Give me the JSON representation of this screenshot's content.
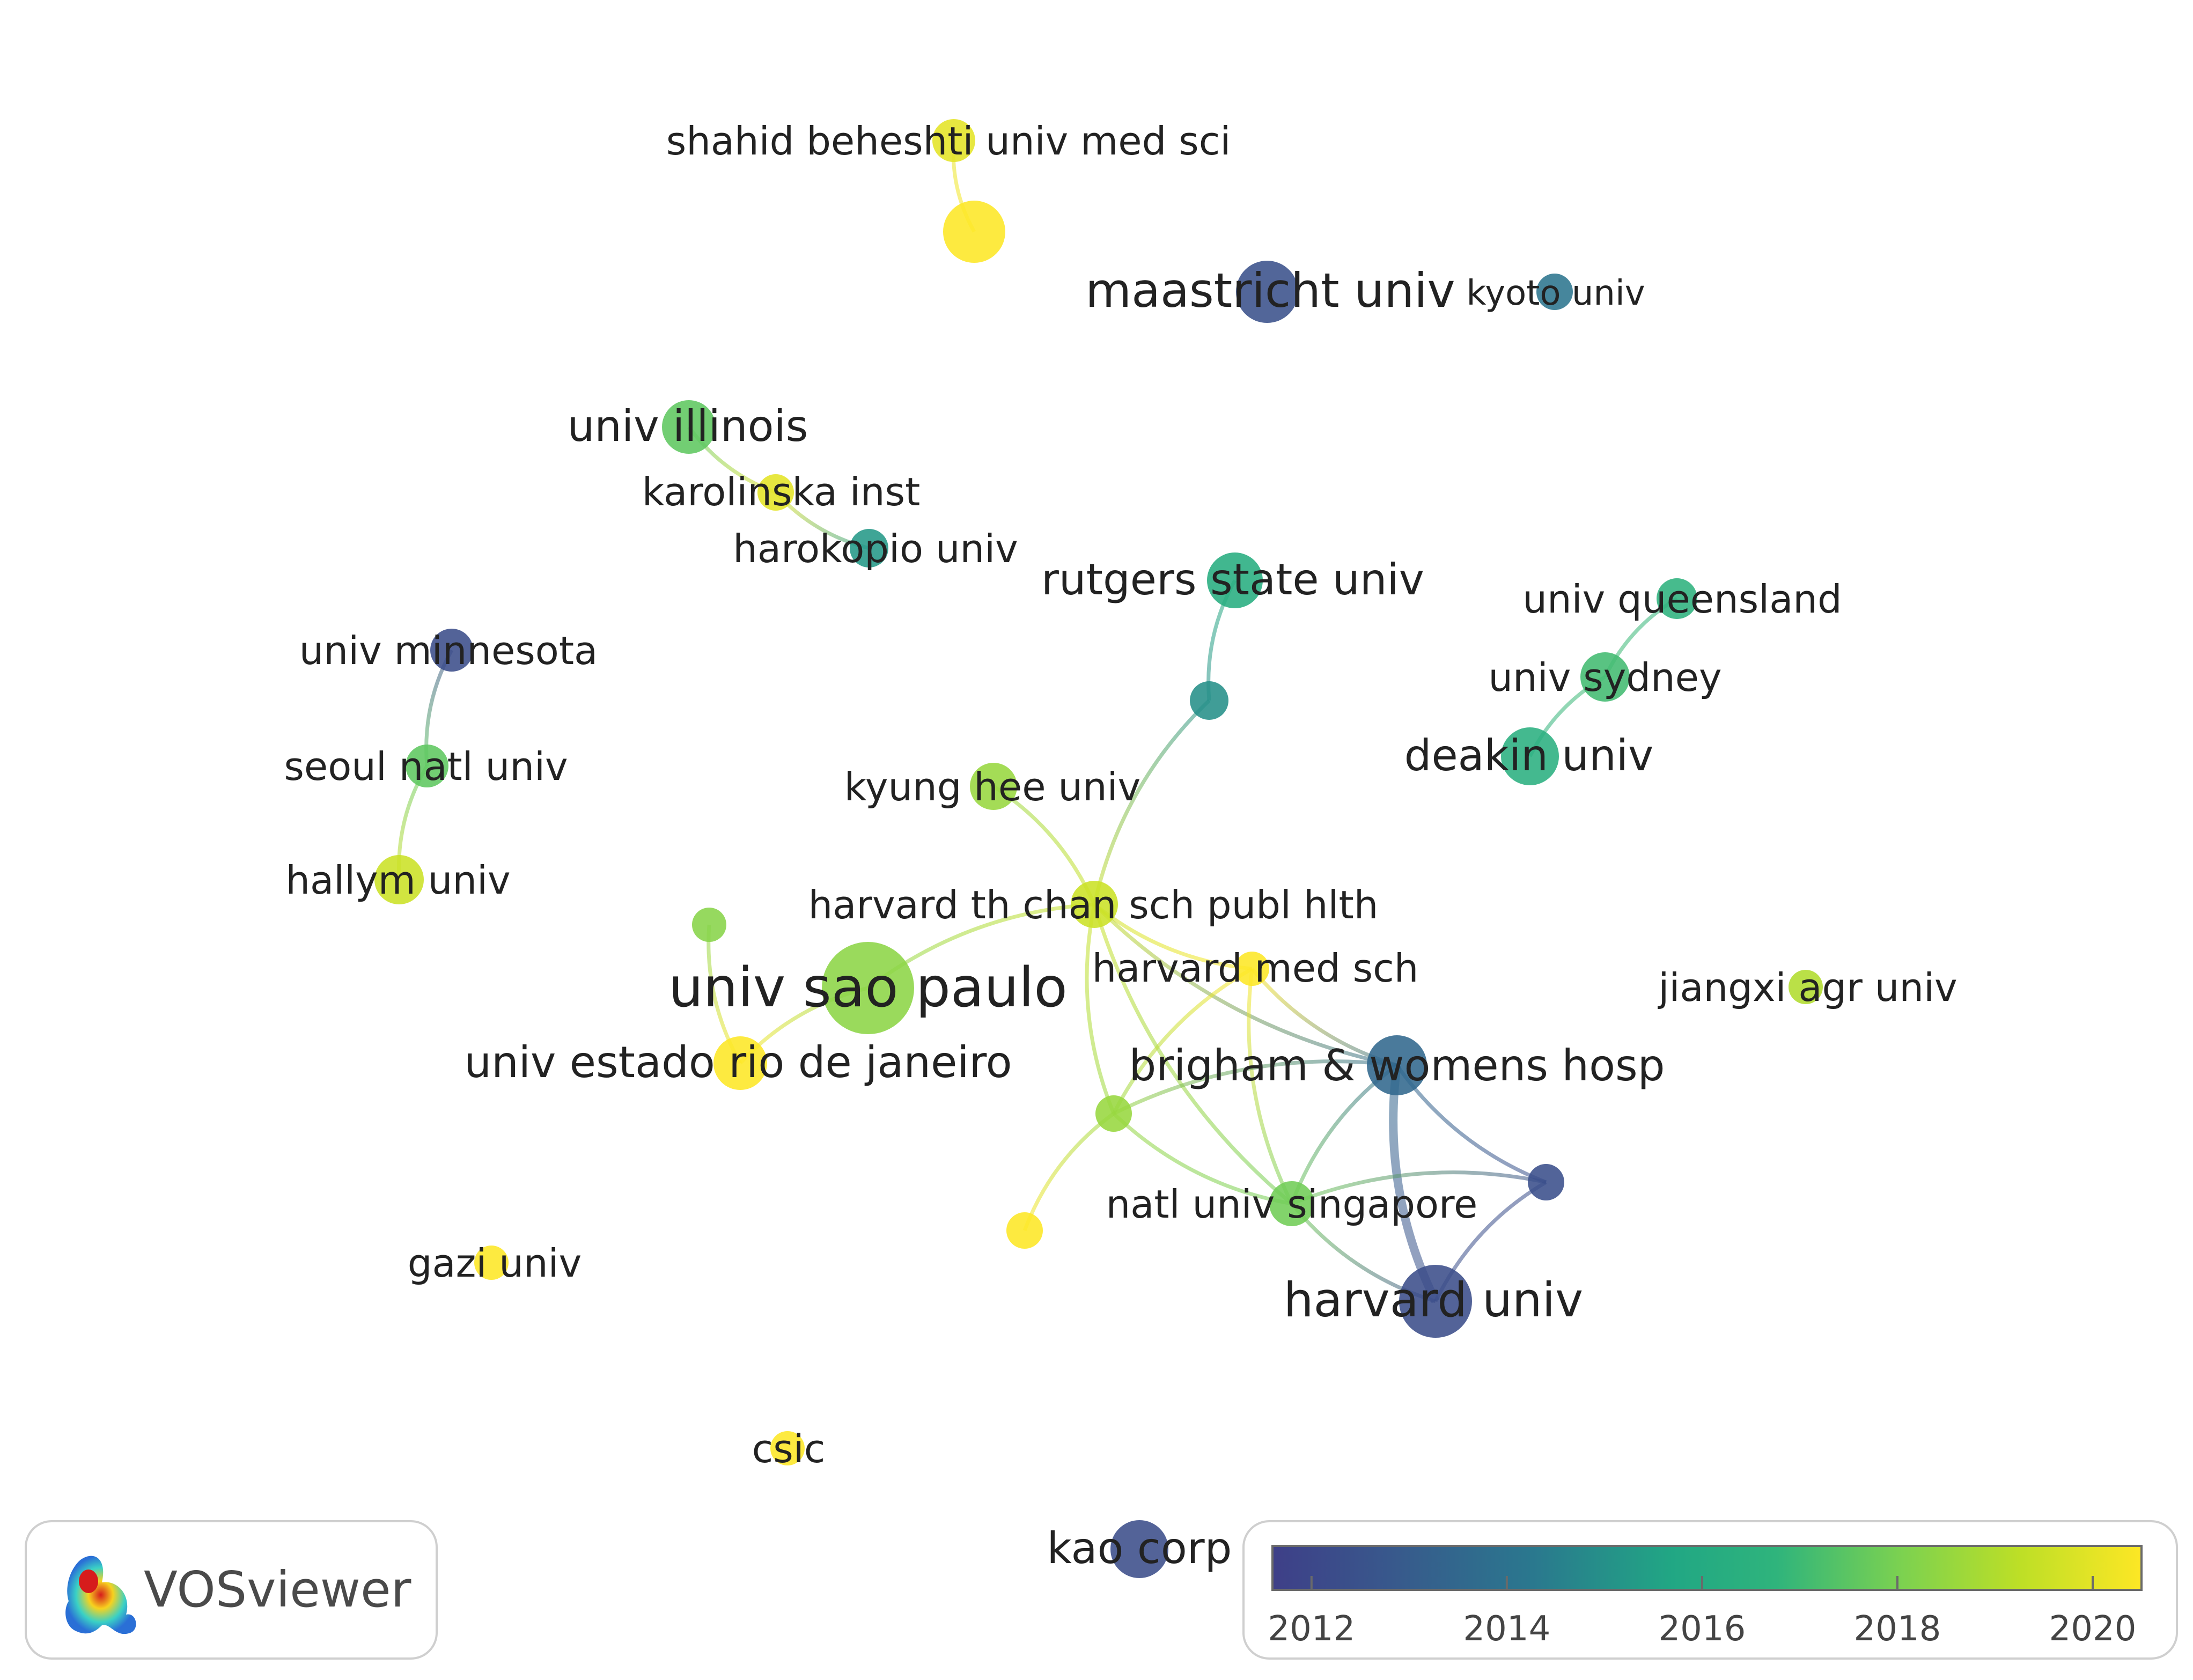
{
  "app": {
    "logo_text": "VOSviewer"
  },
  "nodes": [
    {
      "id": "shahid",
      "label": "shahid beheshti univ med sci",
      "year": 2020
    },
    {
      "id": "unlabeled-top",
      "label": "",
      "year": 2020.5
    },
    {
      "id": "maastricht",
      "label": "maastricht univ",
      "year": 2012.5
    },
    {
      "id": "kyoto",
      "label": "kyoto univ",
      "year": 2014
    },
    {
      "id": "illinois",
      "label": "univ illinois",
      "year": 2017.5
    },
    {
      "id": "karolinska",
      "label": "karolinska inst",
      "year": 2020
    },
    {
      "id": "harokopio",
      "label": "harokopio univ",
      "year": 2015
    },
    {
      "id": "rutgers",
      "label": "rutgers state univ",
      "year": 2016
    },
    {
      "id": "queensland",
      "label": "univ queensland",
      "year": 2016.5
    },
    {
      "id": "sydney",
      "label": "univ sydney",
      "year": 2017
    },
    {
      "id": "deakin",
      "label": "deakin univ",
      "year": 2016.2
    },
    {
      "id": "minnesota",
      "label": "univ minnesota",
      "year": 2012.3
    },
    {
      "id": "seoul",
      "label": "seoul natl univ",
      "year": 2017.5
    },
    {
      "id": "hallym",
      "label": "hallym univ",
      "year": 2019.5
    },
    {
      "id": "kyunghee",
      "label": "kyung hee univ",
      "year": 2018.5
    },
    {
      "id": "unlabeled-rutgers",
      "label": "",
      "year": 2014.8
    },
    {
      "id": "harvard-th",
      "label": "harvard th chan sch publ hlth",
      "year": 2019.5
    },
    {
      "id": "harvard-med",
      "label": "harvard med sch",
      "year": 2020.5
    },
    {
      "id": "unlabeled-sao",
      "label": "",
      "year": 2018.2
    },
    {
      "id": "sao-paulo",
      "label": "univ sao paulo",
      "year": 2018.3
    },
    {
      "id": "rio",
      "label": "univ estado rio de janeiro",
      "year": 2020.5
    },
    {
      "id": "brigham",
      "label": "brigham & womens hosp",
      "year": 2013.5
    },
    {
      "id": "unlabeled-mid",
      "label": "",
      "year": 2018.5
    },
    {
      "id": "unlabeled-purple",
      "label": "",
      "year": 2012.4
    },
    {
      "id": "nus",
      "label": "natl univ singapore",
      "year": 2017.8
    },
    {
      "id": "unlabeled-yellow",
      "label": "",
      "year": 2020.6
    },
    {
      "id": "harvard-univ",
      "label": "harvard univ",
      "year": 2012.3
    },
    {
      "id": "jiangxi",
      "label": "jiangxi agr univ",
      "year": 2019
    },
    {
      "id": "gazi",
      "label": "gazi univ",
      "year": 2020.5
    },
    {
      "id": "csic",
      "label": "csic",
      "year": 2020.5
    },
    {
      "id": "kao",
      "label": "kao corp",
      "year": 2012.3
    }
  ],
  "links": [
    [
      "shahid",
      "unlabeled-top"
    ],
    [
      "illinois",
      "karolinska"
    ],
    [
      "karolinska",
      "harokopio"
    ],
    [
      "rutgers",
      "unlabeled-rutgers"
    ],
    [
      "unlabeled-rutgers",
      "harvard-th"
    ],
    [
      "queensland",
      "sydney"
    ],
    [
      "sydney",
      "deakin"
    ],
    [
      "minnesota",
      "seoul"
    ],
    [
      "seoul",
      "hallym"
    ],
    [
      "harvard-th",
      "kyunghee"
    ],
    [
      "harvard-th",
      "sao-paulo"
    ],
    [
      "harvard-th",
      "harvard-med"
    ],
    [
      "harvard-th",
      "brigham"
    ],
    [
      "harvard-th",
      "unlabeled-mid"
    ],
    [
      "harvard-th",
      "nus"
    ],
    [
      "unlabeled-sao",
      "rio"
    ],
    [
      "sao-paulo",
      "rio"
    ],
    [
      "harvard-med",
      "unlabeled-mid"
    ],
    [
      "harvard-med",
      "nus"
    ],
    [
      "harvard-med",
      "brigham"
    ],
    [
      "brigham",
      "unlabeled-mid"
    ],
    [
      "brigham",
      "nus"
    ],
    [
      "brigham",
      "harvard-univ"
    ],
    [
      "brigham",
      "unlabeled-purple"
    ],
    [
      "unlabeled-mid",
      "nus"
    ],
    [
      "unlabeled-mid",
      "unlabeled-yellow"
    ],
    [
      "unlabeled-purple",
      "harvard-univ"
    ],
    [
      "unlabeled-purple",
      "nus"
    ],
    [
      "nus",
      "harvard-univ"
    ]
  ],
  "legend": {
    "scale_min": 2011.6,
    "scale_max": 2020.5,
    "ticks": [
      "2012",
      "2014",
      "2016",
      "2018",
      "2020"
    ],
    "tick_values": [
      2012,
      2014,
      2016,
      2018,
      2020
    ],
    "colors": [
      "#3e3f88",
      "#38598c",
      "#2a788e",
      "#21a784",
      "#2fb47c",
      "#7ad151",
      "#bddf26",
      "#fde725"
    ]
  }
}
